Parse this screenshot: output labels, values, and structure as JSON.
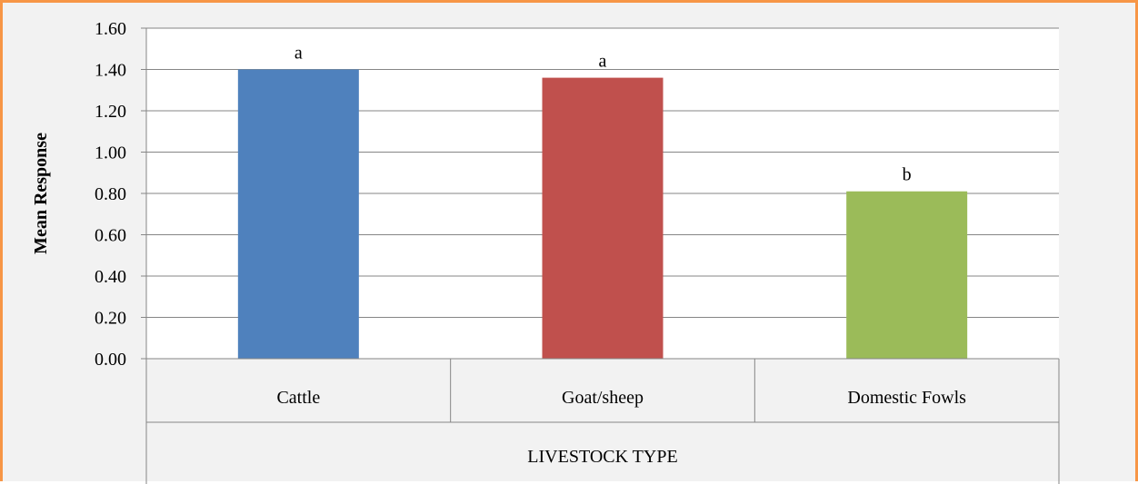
{
  "chart_data": {
    "type": "bar",
    "title": "",
    "ylabel": "Mean Response",
    "xlabel": "LIVESTOCK TYPE",
    "categories": [
      "Cattle",
      "Goat/sheep",
      "Domestic Fowls"
    ],
    "values": [
      1.4,
      1.36,
      0.81
    ],
    "data_labels": [
      "a",
      "a",
      "b"
    ],
    "colors": [
      "#4f81bd",
      "#c0504d",
      "#9bbb59"
    ],
    "ylim": [
      0,
      1.6
    ],
    "ytick_step": 0.2,
    "ytick_labels": [
      "0.00",
      "0.20",
      "0.40",
      "0.60",
      "0.80",
      "1.00",
      "1.20",
      "1.40",
      "1.60"
    ],
    "grid": true,
    "legend": "none"
  },
  "style": {
    "frame_border_color": "#f79646",
    "plot_background": "#ffffff",
    "gridline_color": "#868686"
  }
}
